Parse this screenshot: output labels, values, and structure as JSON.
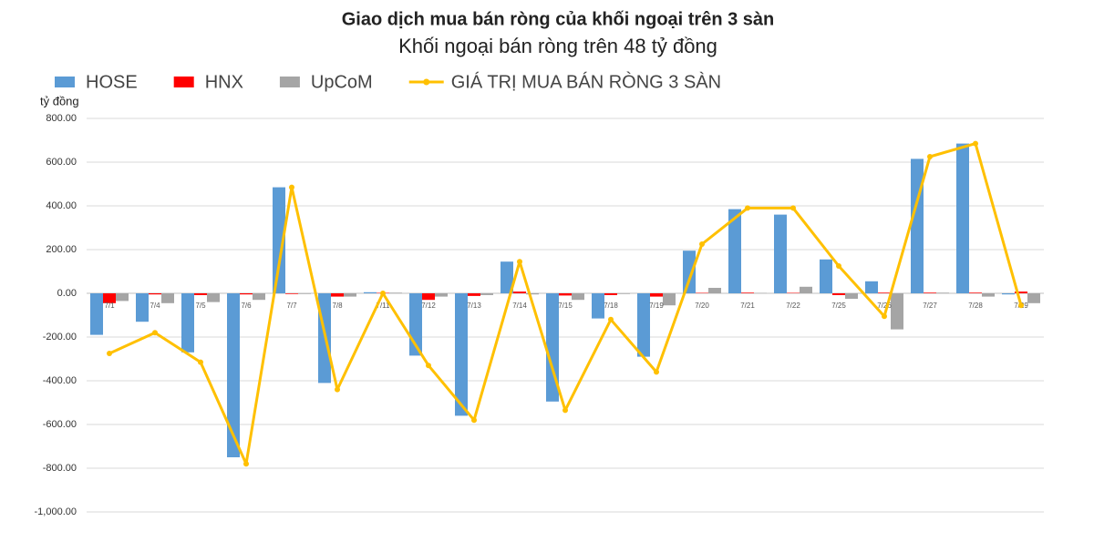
{
  "chart_data": {
    "type": "bar",
    "title": "Giao dịch mua bán ròng của khối ngoại trên 3 sàn",
    "subtitle": "Khối ngoại bán ròng trên 48 tỷ đồng",
    "y_axis_label": "tỷ đồng",
    "categories": [
      "7/1",
      "7/4",
      "7/5",
      "7/6",
      "7/7",
      "7/8",
      "7/11",
      "7/12",
      "7/13",
      "7/14",
      "7/15",
      "7/18",
      "7/19",
      "7/20",
      "7/21",
      "7/22",
      "7/25",
      "7/26",
      "7/27",
      "7/28",
      "7/29"
    ],
    "series": [
      {
        "name": "HOSE",
        "color": "#5b9bd5",
        "type": "bar",
        "values": [
          -190,
          -130,
          -270,
          -750,
          485,
          -410,
          5,
          -285,
          -560,
          145,
          -495,
          -115,
          -290,
          195,
          385,
          360,
          155,
          55,
          615,
          685,
          -5
        ]
      },
      {
        "name": "HNX",
        "color": "#ff0000",
        "type": "bar",
        "values": [
          -45,
          -5,
          -8,
          -5,
          -3,
          -15,
          2,
          -30,
          -12,
          8,
          -10,
          -8,
          -15,
          2,
          3,
          2,
          -8,
          3,
          3,
          3,
          8
        ]
      },
      {
        "name": "UpCoM",
        "color": "#a5a5a5",
        "type": "bar",
        "values": [
          -35,
          -45,
          -40,
          -30,
          -3,
          -15,
          3,
          -15,
          -8,
          -5,
          -30,
          -3,
          -55,
          25,
          2,
          30,
          -25,
          -165,
          3,
          -15,
          -45
        ]
      },
      {
        "name": "GIÁ TRỊ MUA BÁN RÒNG 3 SÀN",
        "color": "#ffc000",
        "type": "line",
        "values": [
          -275,
          -180,
          -315,
          -780,
          485,
          -440,
          0,
          -330,
          -580,
          145,
          -535,
          -120,
          -360,
          225,
          390,
          390,
          125,
          -105,
          625,
          685,
          -55
        ]
      }
    ],
    "ylim": [
      -1000,
      800
    ],
    "yticks": [
      {
        "value": -1000,
        "label": "-1,000.00"
      },
      {
        "value": -800,
        "label": "-800.00"
      },
      {
        "value": -600,
        "label": "-600.00"
      },
      {
        "value": -400,
        "label": "-400.00"
      },
      {
        "value": -200,
        "label": "-200.00"
      },
      {
        "value": 0,
        "label": "0.00"
      },
      {
        "value": 200,
        "label": "200.00"
      },
      {
        "value": 400,
        "label": "400.00"
      },
      {
        "value": 600,
        "label": "600.00"
      },
      {
        "value": 800,
        "label": "800.00"
      }
    ],
    "grid": true
  }
}
